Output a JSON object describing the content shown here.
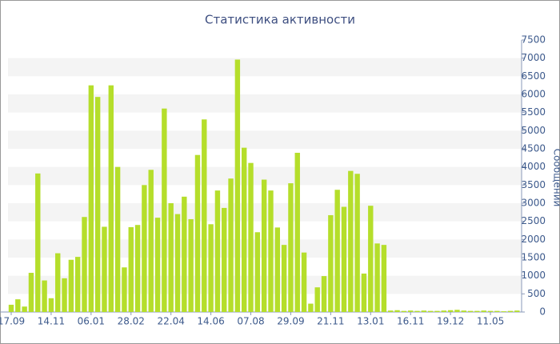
{
  "chart_data": {
    "type": "bar",
    "title": "Статистика активности",
    "y_label": "Сообщений",
    "categories": [
      "17.09",
      null,
      null,
      null,
      null,
      null,
      "14.11",
      null,
      null,
      null,
      null,
      null,
      "06.01",
      null,
      null,
      null,
      null,
      null,
      "28.02",
      null,
      null,
      null,
      null,
      null,
      "22.04",
      null,
      null,
      null,
      null,
      null,
      "14.06",
      null,
      null,
      null,
      null,
      null,
      "07.08",
      null,
      null,
      null,
      null,
      null,
      "29.09",
      null,
      null,
      null,
      null,
      null,
      "21.11",
      null,
      null,
      null,
      null,
      null,
      "13.01",
      null,
      null,
      null,
      null,
      null,
      "16.11",
      null,
      null,
      null,
      null,
      null,
      "19.12",
      null,
      null,
      null,
      null,
      null,
      "11.05",
      null,
      null,
      null,
      null
    ],
    "values": [
      200,
      350,
      150,
      1080,
      3820,
      870,
      380,
      1620,
      930,
      1440,
      1520,
      2620,
      6250,
      5930,
      2350,
      6250,
      4000,
      1230,
      2340,
      2400,
      3500,
      3920,
      2600,
      5610,
      3000,
      2700,
      3180,
      2560,
      4330,
      5310,
      2420,
      3350,
      2870,
      3680,
      6960,
      4530,
      4110,
      2200,
      3650,
      3350,
      2330,
      1850,
      3550,
      4390,
      1640,
      230,
      680,
      990,
      2670,
      3370,
      2900,
      3890,
      3810,
      1060,
      2930,
      1890,
      1850,
      40,
      50,
      30,
      40,
      30,
      40,
      30,
      30,
      40,
      50,
      60,
      40,
      30,
      30,
      40,
      30,
      30,
      20,
      30,
      40
    ],
    "color": "#b5de2b",
    "ylim": [
      0,
      7500
    ],
    "yticks": [
      0,
      500,
      1000,
      1500,
      2000,
      2500,
      3000,
      3500,
      4000,
      4500,
      5000,
      5500,
      6000,
      6500,
      7000,
      7500
    ],
    "grid": true
  }
}
